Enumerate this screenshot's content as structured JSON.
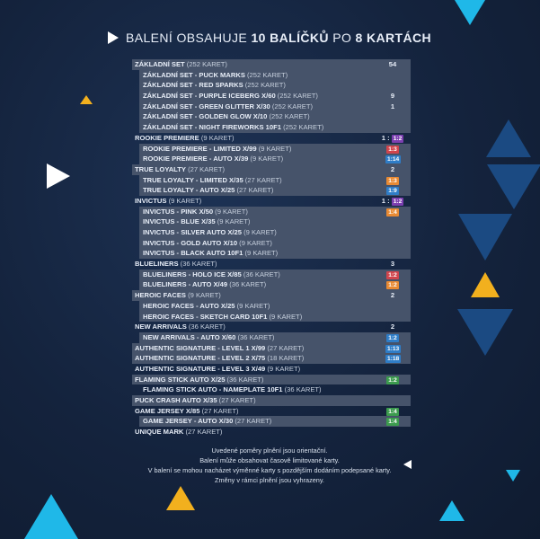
{
  "header": {
    "prefix": "BALENÍ OBSAHUJE",
    "bold_count": "10 BALÍČKŮ",
    "middle": "PO",
    "bold_cards": "8 KARTÁCH"
  },
  "rows": [
    {
      "name": "ZÁKLADNÍ SET",
      "count": "(252 KARET)",
      "value": "54",
      "type": "main"
    },
    {
      "name": "ZÁKLADNÍ SET - PUCK MARKS",
      "count": "(252 KARET)",
      "value": "",
      "type": "sub"
    },
    {
      "name": "ZÁKLADNÍ SET - RED SPARKS",
      "count": "(252 KARET)",
      "value": "",
      "type": "sub"
    },
    {
      "name": "ZÁKLADNÍ SET - PURPLE ICEBERG X/60",
      "count": "(252 KARET)",
      "value": "9",
      "type": "sub"
    },
    {
      "name": "ZÁKLADNÍ SET - GREEN GLITTER X/30",
      "count": "(252 KARET)",
      "value": "1",
      "type": "sub"
    },
    {
      "name": "ZÁKLADNÍ SET - GOLDEN GLOW X/10",
      "count": "(252 KARET)",
      "value": "",
      "type": "sub"
    },
    {
      "name": "ZÁKLADNÍ SET - NIGHT FIREWORKS 10F1",
      "count": "(252 KARET)",
      "value": "",
      "type": "sub"
    },
    {
      "name": "ROOKIE PREMIERE",
      "count": "(9 KARET)",
      "value": "1 : 1:2",
      "type": "plain-main",
      "pill": "purple-tail"
    },
    {
      "name": "ROOKIE PREMIERE - LIMITED X/99",
      "count": "(9 KARET)",
      "value": "1:3",
      "type": "sub",
      "pill": "red"
    },
    {
      "name": "ROOKIE PREMIERE - AUTO X/39",
      "count": "(9 KARET)",
      "value": "1:14",
      "type": "sub",
      "pill": "blue"
    },
    {
      "name": "TRUE LOYALTY",
      "count": "(27 KARET)",
      "value": "2",
      "type": "main"
    },
    {
      "name": "TRUE LOYALTY - LIMITED X/35",
      "count": "(27 KARET)",
      "value": "1:3",
      "type": "sub",
      "pill": "orange"
    },
    {
      "name": "TRUE LOYALTY - AUTO X/25",
      "count": "(27 KARET)",
      "value": "1:9",
      "type": "sub",
      "pill": "blue"
    },
    {
      "name": "INVICTUS",
      "count": "(9 KARET)",
      "value": "1 : 1:2",
      "type": "plain-main",
      "pill": "purple-tail"
    },
    {
      "name": "INVICTUS - PINK X/50",
      "count": "(9 KARET)",
      "value": "1:4",
      "type": "sub",
      "pill": "orange"
    },
    {
      "name": "INVICTUS - BLUE X/35",
      "count": "(9 KARET)",
      "value": "",
      "type": "sub"
    },
    {
      "name": "INVICTUS - SILVER AUTO X/25",
      "count": "(9 KARET)",
      "value": "",
      "type": "sub"
    },
    {
      "name": "INVICTUS - GOLD AUTO X/10",
      "count": "(9 KARET)",
      "value": "",
      "type": "sub"
    },
    {
      "name": "INVICTUS - BLACK AUTO 10F1",
      "count": "(9 KARET)",
      "value": "",
      "type": "sub"
    },
    {
      "name": "BLUELINERS",
      "count": "(36 KARET)",
      "value": "3",
      "type": "plain-main"
    },
    {
      "name": "BLUELINERS - HOLO ICE X/85",
      "count": "(36 KARET)",
      "value": "1:2",
      "type": "sub",
      "pill": "red"
    },
    {
      "name": "BLUELINERS - AUTO X/49",
      "count": "(36 KARET)",
      "value": "1:2",
      "type": "sub",
      "pill": "orange"
    },
    {
      "name": "HEROIC FACES",
      "count": "(9 KARET)",
      "value": "2",
      "type": "main"
    },
    {
      "name": "HEROIC FACES - AUTO X/25",
      "count": "(9 KARET)",
      "value": "",
      "type": "sub"
    },
    {
      "name": "HEROIC FACES - SKETCH CARD 10F1",
      "count": "(9 KARET)",
      "value": "",
      "type": "sub"
    },
    {
      "name": "NEW ARRIVALS",
      "count": "(36 KARET)",
      "value": "2",
      "type": "plain-main"
    },
    {
      "name": "NEW ARRIVALS - AUTO X/60",
      "count": "(36 KARET)",
      "value": "1:2",
      "type": "sub",
      "pill": "blue"
    },
    {
      "name": "AUTHENTIC  SIGNATURE - LEVEL 1 X/99",
      "count": "(27 KARET)",
      "value": "1:13",
      "type": "main",
      "pill": "blue"
    },
    {
      "name": "AUTHENTIC  SIGNATURE - LEVEL 2 X/75",
      "count": "(18 KARET)",
      "value": "1:18",
      "type": "main",
      "pill": "blue"
    },
    {
      "name": "AUTHENTIC  SIGNATURE - LEVEL 3 X/49",
      "count": "(9 KARET)",
      "value": "",
      "type": "plain-main"
    },
    {
      "name": "FLAMING STICK AUTO X/25",
      "count": "(36 KARET)",
      "value": "1:2",
      "type": "main",
      "pill": "green"
    },
    {
      "name": "FLAMING STICK AUTO - NAMEPLATE 10F1",
      "count": "(36 KARET)",
      "value": "",
      "type": "plain-sub"
    },
    {
      "name": "PUCK CRASH AUTO X/35",
      "count": "(27 KARET)",
      "value": "",
      "type": "main"
    },
    {
      "name": "GAME JERSEY X/85",
      "count": "(27 KARET)",
      "value": "1:4",
      "type": "plain-main",
      "pill": "green"
    },
    {
      "name": "GAME JERSEY - AUTO X/30",
      "count": "(27 KARET)",
      "value": "1:4",
      "type": "sub",
      "pill": "green"
    },
    {
      "name": "UNIQUE MARK",
      "count": "(27 KARET)",
      "value": "",
      "type": "plain-main"
    }
  ],
  "notes": [
    "Uvedené poměry plnění jsou orientační.",
    "Balení může obsahovat časově limitované karty.",
    "V balení se mohou nacházet výměnné karty s pozdějším dodáním podepsané karty.",
    "Změny v rámci plnění jsou vyhrazeny."
  ],
  "colors": {
    "background": "#14233d",
    "row_fill": "#46536a",
    "pill_red": "#d0454d",
    "pill_orange": "#e88a33",
    "pill_blue": "#2f7dc7",
    "pill_green": "#3c9b4e",
    "pill_purple": "#7c3fb0",
    "accent_cyan": "#1fb8e8",
    "accent_yellow": "#f2b01e"
  }
}
